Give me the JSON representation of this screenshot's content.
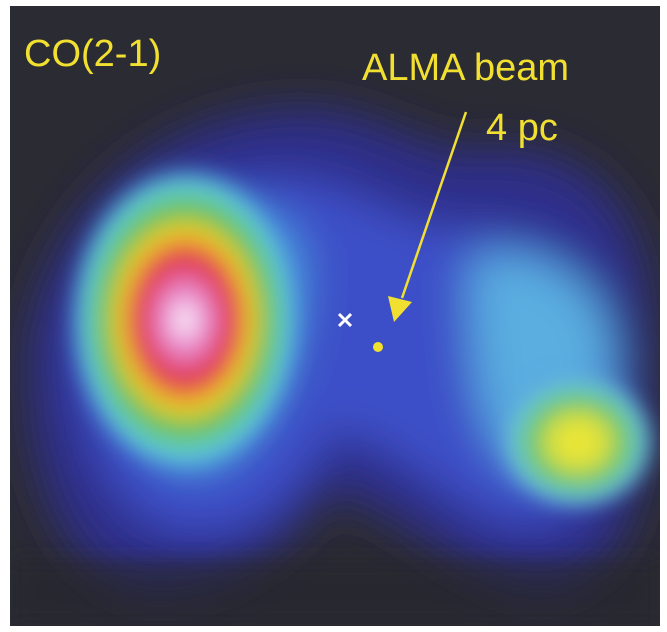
{
  "labels": {
    "line": "CO(2-1)",
    "beam": "ALMA beam",
    "scale": "4 pc"
  }
}
